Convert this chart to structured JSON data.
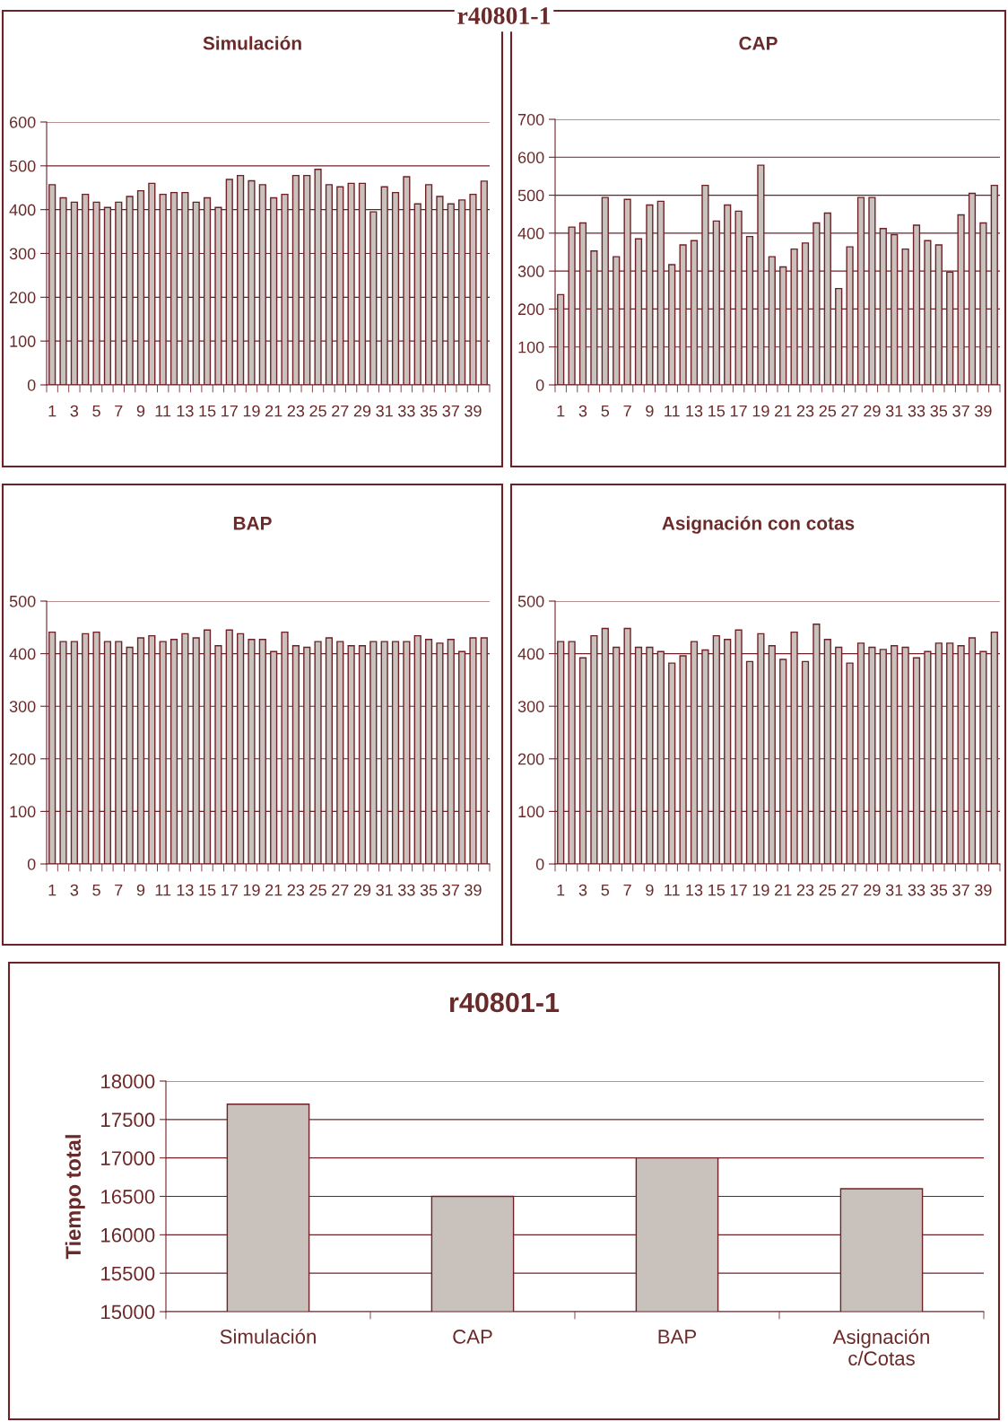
{
  "chart_data": [
    {
      "type": "bar",
      "title": "Simulación",
      "annotations": [
        "r40801-1"
      ],
      "color": "#c9c1bc",
      "grid": "y",
      "ylim": [
        0,
        600
      ],
      "yticks": [
        0,
        100,
        200,
        300,
        400,
        500,
        600
      ],
      "categories": [
        "1",
        null,
        "3",
        null,
        "5",
        null,
        "7",
        null,
        "9",
        null,
        "11",
        null,
        "13",
        null,
        "15",
        null,
        "17",
        null,
        "19",
        null,
        "21",
        null,
        "23",
        null,
        "25",
        null,
        "27",
        null,
        "29",
        null,
        "31",
        null,
        "33",
        null,
        "35",
        null,
        "37",
        null,
        "39",
        null
      ],
      "values": [
        457,
        427,
        417,
        435,
        417,
        405,
        417,
        430,
        443,
        460,
        435,
        439,
        439,
        417,
        427,
        405,
        469,
        478,
        466,
        457,
        427,
        435,
        478,
        478,
        492,
        457,
        452,
        460,
        460,
        395,
        452,
        439,
        475,
        413,
        457,
        430,
        413,
        422,
        435,
        465
      ]
    },
    {
      "type": "bar",
      "title": "CAP",
      "color": "#c9c1bc",
      "grid": "y",
      "ylim": [
        0,
        700
      ],
      "yticks": [
        0,
        100,
        200,
        300,
        400,
        500,
        600,
        700
      ],
      "categories": [
        "1",
        null,
        "3",
        null,
        "5",
        null,
        "7",
        null,
        "9",
        null,
        "11",
        null,
        "13",
        null,
        "15",
        null,
        "17",
        null,
        "19",
        null,
        "21",
        null,
        "23",
        null,
        "25",
        null,
        "27",
        null,
        "29",
        null,
        "31",
        null,
        "33",
        null,
        "35",
        null,
        "37",
        null,
        "39",
        null
      ],
      "values": [
        238,
        416,
        427,
        353,
        494,
        338,
        489,
        385,
        474,
        484,
        317,
        369,
        380,
        526,
        432,
        474,
        458,
        391,
        579,
        338,
        311,
        358,
        374,
        427,
        453,
        254,
        364,
        494,
        494,
        412,
        396,
        358,
        421,
        380,
        369,
        297,
        448,
        505,
        427,
        526
      ]
    },
    {
      "type": "bar",
      "title": "BAP",
      "color": "#c9c1bc",
      "grid": "y",
      "ylim": [
        0,
        500
      ],
      "yticks": [
        0,
        100,
        200,
        300,
        400,
        500
      ],
      "categories": [
        "1",
        null,
        "3",
        null,
        "5",
        null,
        "7",
        null,
        "9",
        null,
        "11",
        null,
        "13",
        null,
        "15",
        null,
        "17",
        null,
        "19",
        null,
        "21",
        null,
        "23",
        null,
        "25",
        null,
        "27",
        null,
        "29",
        null,
        "31",
        null,
        "33",
        null,
        "35",
        null,
        "37",
        null,
        "39",
        null
      ],
      "values": [
        441,
        423,
        423,
        438,
        441,
        423,
        423,
        412,
        430,
        434,
        423,
        427,
        438,
        430,
        445,
        415,
        445,
        438,
        427,
        427,
        404,
        441,
        415,
        412,
        423,
        430,
        423,
        415,
        415,
        423,
        423,
        423,
        423,
        434,
        427,
        420,
        427,
        404,
        430,
        430
      ]
    },
    {
      "type": "bar",
      "title": "Asignación con cotas",
      "color": "#c9c1bc",
      "grid": "y",
      "ylim": [
        0,
        500
      ],
      "yticks": [
        0,
        100,
        200,
        300,
        400,
        500
      ],
      "categories": [
        "1",
        null,
        "3",
        null,
        "5",
        null,
        "7",
        null,
        "9",
        null,
        "11",
        null,
        "13",
        null,
        "15",
        null,
        "17",
        null,
        "19",
        null,
        "21",
        null,
        "23",
        null,
        "25",
        null,
        "27",
        null,
        "29",
        null,
        "31",
        null,
        "33",
        null,
        "35",
        null,
        "37",
        null,
        "39",
        null
      ],
      "values": [
        423,
        423,
        392,
        434,
        448,
        412,
        448,
        412,
        412,
        404,
        382,
        396,
        423,
        407,
        434,
        427,
        445,
        385,
        438,
        415,
        389,
        441,
        385,
        456,
        427,
        412,
        382,
        420,
        412,
        408,
        415,
        412,
        392,
        404,
        420,
        420,
        415,
        430,
        404,
        441
      ]
    },
    {
      "type": "bar",
      "title": "r40801-1",
      "ylabel": "Tiempo total",
      "color": "#c9c1bc",
      "grid": "y",
      "ylim": [
        15000,
        18000
      ],
      "yticks": [
        15000,
        15500,
        16000,
        16500,
        17000,
        17500,
        18000
      ],
      "categories": [
        "Simulación",
        "CAP",
        "BAP",
        "Asignación\nc/Cotas"
      ],
      "values": [
        17700,
        16500,
        17000,
        16600
      ]
    }
  ]
}
